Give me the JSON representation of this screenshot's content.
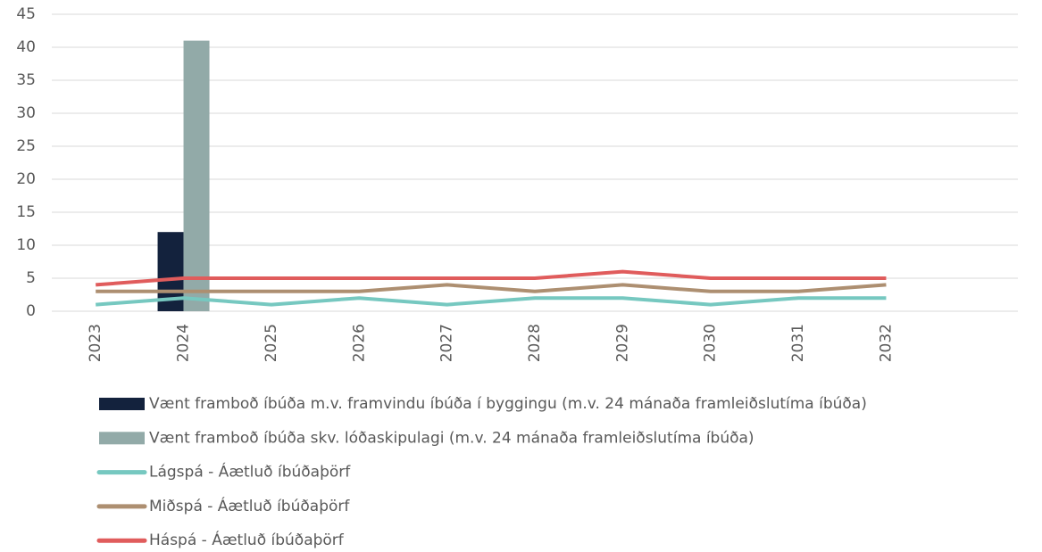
{
  "chart_data": {
    "type": "bar",
    "categories": [
      "2023",
      "2024",
      "2025",
      "2026",
      "2027",
      "2028",
      "2029",
      "2030",
      "2031",
      "2032",
      null
    ],
    "series": [
      {
        "name": "Vænt framboð íbúða m.v. framvindu íbúða í byggingu (m.v. 24 mánaða framleiðslutíma íbúða)",
        "type": "bar",
        "color": "#13223d",
        "values": [
          0,
          12,
          0,
          0,
          0,
          0,
          0,
          0,
          0,
          0,
          null
        ]
      },
      {
        "name": "Vænt framboð íbúða skv. lóðaskipulagi (m.v. 24 mánaða framleiðslutíma íbúða)",
        "type": "bar",
        "color": "#92aaa8",
        "values": [
          0,
          41,
          0,
          0,
          0,
          0,
          0,
          0,
          0,
          0,
          null
        ]
      },
      {
        "name": "Lágspá - Áætluð íbúðaþörf",
        "type": "line",
        "color": "#76c8c0",
        "values": [
          1,
          2,
          1,
          2,
          1,
          2,
          2,
          1,
          2,
          2,
          null
        ]
      },
      {
        "name": "Miðspá - Áætluð íbúðaþörf",
        "type": "line",
        "color": "#ad8f71",
        "values": [
          3,
          3,
          3,
          3,
          4,
          3,
          4,
          3,
          3,
          4,
          null
        ]
      },
      {
        "name": "Háspá - Áætluð íbúðaþörf",
        "type": "line",
        "color": "#e05c5c",
        "values": [
          4,
          5,
          5,
          5,
          5,
          5,
          6,
          5,
          5,
          5,
          null
        ]
      }
    ],
    "ylim": [
      0,
      45
    ],
    "yticks": [
      0,
      5,
      10,
      15,
      20,
      25,
      30,
      35,
      40,
      45
    ],
    "grid": true,
    "legend": "bottom"
  }
}
